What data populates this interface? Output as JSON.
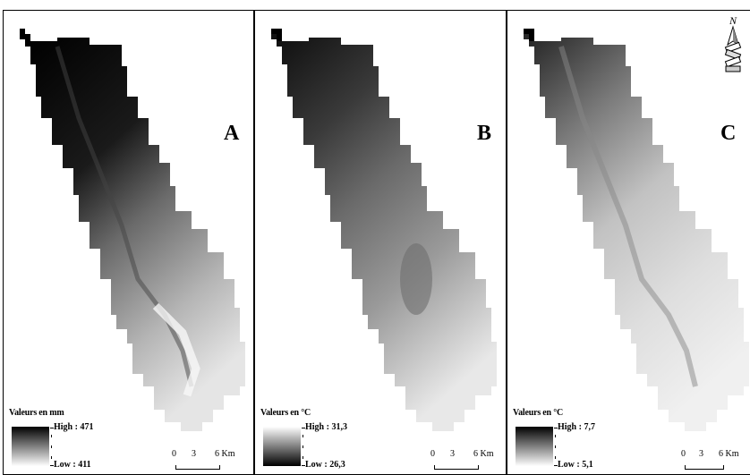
{
  "panels": [
    {
      "letter": "A",
      "legend_title": "Valeurs en mm",
      "high_label": "High : 471",
      "low_label": "Low : 411",
      "ramp": [
        "#000000",
        "#ffffff"
      ],
      "high_value": 471,
      "low_value": 411,
      "unit": "mm"
    },
    {
      "letter": "B",
      "legend_title": "Valeurs en °C",
      "high_label": "High : 31,3",
      "low_label": "Low : 26,3",
      "ramp": [
        "#ffffff",
        "#000000"
      ],
      "high_value": 31.3,
      "low_value": 26.3,
      "unit": "°C"
    },
    {
      "letter": "C",
      "legend_title": "Valeurs en °C",
      "high_label": "High : 7,7",
      "low_label": "Low : 5,1",
      "ramp": [
        "#000000",
        "#ffffff"
      ],
      "high_value": 7.7,
      "low_value": 5.1,
      "unit": "°C"
    }
  ],
  "scale_bar": {
    "ticks": [
      "0",
      "3",
      "6 Km"
    ]
  },
  "north_arrow": {
    "label": "N",
    "icon": "north-arrow-icon"
  }
}
